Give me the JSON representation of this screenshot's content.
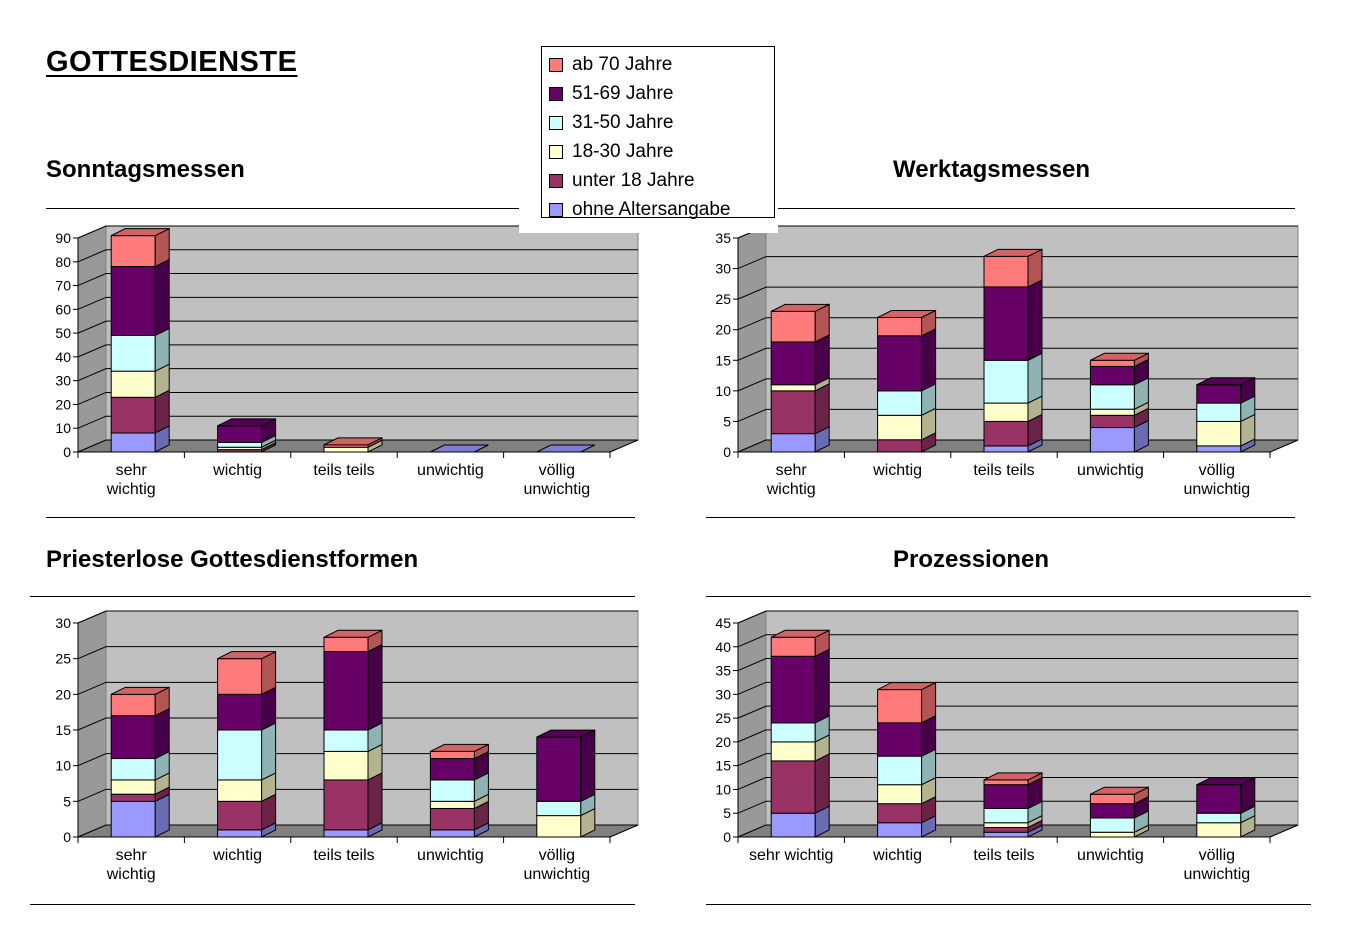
{
  "page_title": "GOTTESDIENSTE",
  "legend": [
    {
      "label": "ab 70 Jahre",
      "color": "#FF7A7A"
    },
    {
      "label": "51-69 Jahre",
      "color": "#660066"
    },
    {
      "label": "31-50 Jahre",
      "color": "#CCFFFF"
    },
    {
      "label": "18-30 Jahre",
      "color": "#FFFFCC"
    },
    {
      "label": "unter 18 Jahre",
      "color": "#993366"
    },
    {
      "label": "ohne Altersangabe",
      "color": "#9999FF"
    }
  ],
  "chart_data": [
    {
      "type": "bar",
      "stacked": true,
      "three_d": true,
      "title": "Sonntagsmessen",
      "categories": [
        "sehr\nwichtig",
        "wichtig",
        "teils teils",
        "unwichtig",
        "völlig\nunwichtig"
      ],
      "ylim": [
        0,
        90
      ],
      "yticks": [
        0,
        10,
        20,
        30,
        40,
        50,
        60,
        70,
        80,
        90
      ],
      "series": [
        {
          "name": "ohne Altersangabe",
          "values": [
            8,
            0,
            0,
            0,
            0
          ]
        },
        {
          "name": "unter 18 Jahre",
          "values": [
            15,
            1,
            0,
            0,
            0
          ]
        },
        {
          "name": "18-30 Jahre",
          "values": [
            11,
            1,
            2,
            0,
            0
          ]
        },
        {
          "name": "31-50 Jahre",
          "values": [
            15,
            2,
            0,
            0,
            0
          ]
        },
        {
          "name": "51-69 Jahre",
          "values": [
            29,
            7,
            0,
            0,
            0
          ]
        },
        {
          "name": "ab 70 Jahre",
          "values": [
            13,
            0,
            1,
            0,
            0
          ]
        }
      ]
    },
    {
      "type": "bar",
      "stacked": true,
      "three_d": true,
      "title": "Werktagsmessen",
      "categories": [
        "sehr\nwichtig",
        "wichtig",
        "teils teils",
        "unwichtig",
        "völlig\nunwichtig"
      ],
      "ylim": [
        0,
        35
      ],
      "yticks": [
        0,
        5,
        10,
        15,
        20,
        25,
        30,
        35
      ],
      "series": [
        {
          "name": "ohne Altersangabe",
          "values": [
            3,
            0,
            1,
            4,
            1
          ]
        },
        {
          "name": "unter 18 Jahre",
          "values": [
            7,
            2,
            4,
            2,
            0
          ]
        },
        {
          "name": "18-30 Jahre",
          "values": [
            1,
            4,
            3,
            1,
            4
          ]
        },
        {
          "name": "31-50 Jahre",
          "values": [
            0,
            4,
            7,
            4,
            3
          ]
        },
        {
          "name": "51-69 Jahre",
          "values": [
            7,
            9,
            12,
            3,
            3
          ]
        },
        {
          "name": "ab 70 Jahre",
          "values": [
            5,
            3,
            5,
            1,
            0
          ]
        }
      ]
    },
    {
      "type": "bar",
      "stacked": true,
      "three_d": true,
      "title": "Priesterlose Gottesdienstformen",
      "categories": [
        "sehr\nwichtig",
        "wichtig",
        "teils teils",
        "unwichtig",
        "völlig\nunwichtig"
      ],
      "ylim": [
        0,
        30
      ],
      "yticks": [
        0,
        5,
        10,
        15,
        20,
        25,
        30
      ],
      "series": [
        {
          "name": "ohne Altersangabe",
          "values": [
            5,
            1,
            1,
            1,
            0
          ]
        },
        {
          "name": "unter 18 Jahre",
          "values": [
            1,
            4,
            7,
            3,
            0
          ]
        },
        {
          "name": "18-30 Jahre",
          "values": [
            2,
            3,
            4,
            1,
            3
          ]
        },
        {
          "name": "31-50 Jahre",
          "values": [
            3,
            7,
            3,
            3,
            2
          ]
        },
        {
          "name": "51-69 Jahre",
          "values": [
            6,
            5,
            11,
            3,
            9
          ]
        },
        {
          "name": "ab 70 Jahre",
          "values": [
            3,
            5,
            2,
            1,
            0
          ]
        }
      ]
    },
    {
      "type": "bar",
      "stacked": true,
      "three_d": true,
      "title": "Prozessionen",
      "categories": [
        "sehr wichtig",
        "wichtig",
        "teils teils",
        "unwichtig",
        "völlig\nunwichtig"
      ],
      "ylim": [
        0,
        45
      ],
      "yticks": [
        0,
        5,
        10,
        15,
        20,
        25,
        30,
        35,
        40,
        45
      ],
      "series": [
        {
          "name": "ohne Altersangabe",
          "values": [
            5,
            3,
            1,
            0,
            0
          ]
        },
        {
          "name": "unter 18 Jahre",
          "values": [
            11,
            4,
            1,
            0,
            0
          ]
        },
        {
          "name": "18-30 Jahre",
          "values": [
            4,
            4,
            1,
            1,
            3
          ]
        },
        {
          "name": "31-50 Jahre",
          "values": [
            4,
            6,
            3,
            3,
            2
          ]
        },
        {
          "name": "51-69 Jahre",
          "values": [
            14,
            7,
            5,
            3,
            6
          ]
        },
        {
          "name": "ab 70 Jahre",
          "values": [
            4,
            7,
            1,
            2,
            0
          ]
        }
      ]
    }
  ]
}
